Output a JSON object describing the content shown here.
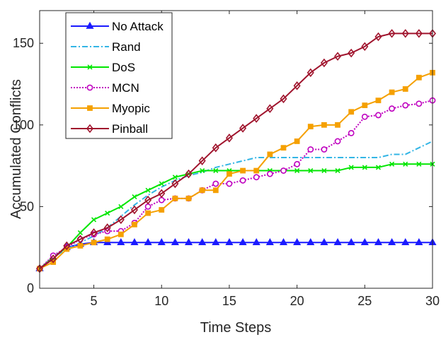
{
  "chart_data": {
    "type": "line",
    "title": "",
    "xlabel": "Time Steps",
    "ylabel": "Accumulated Conflicts",
    "xlim": [
      1,
      30
    ],
    "ylim": [
      0,
      170
    ],
    "xticks": [
      5,
      10,
      15,
      20,
      25,
      30
    ],
    "yticks": [
      0,
      50,
      100,
      150
    ],
    "grid": false,
    "legend_position": "top-left",
    "x": [
      1,
      2,
      3,
      4,
      5,
      6,
      7,
      8,
      9,
      10,
      11,
      12,
      13,
      14,
      15,
      16,
      17,
      18,
      19,
      20,
      21,
      22,
      23,
      24,
      25,
      26,
      27,
      28,
      29,
      30
    ],
    "series": [
      {
        "name": "No Attack",
        "color": "#1a1aff",
        "dash": "",
        "marker": "triangle",
        "values": [
          12,
          19,
          25,
          27,
          28,
          28,
          28,
          28,
          28,
          28,
          28,
          28,
          28,
          28,
          28,
          28,
          28,
          28,
          28,
          28,
          28,
          28,
          28,
          28,
          28,
          28,
          28,
          28,
          28,
          28
        ]
      },
      {
        "name": "Rand",
        "color": "#33b5e5",
        "dash": "8 3 2 3",
        "marker": "none",
        "values": [
          12,
          19,
          24,
          28,
          32,
          37,
          44,
          51,
          57,
          62,
          66,
          69,
          71,
          74,
          76,
          78,
          80,
          80,
          80,
          80,
          80,
          80,
          80,
          80,
          80,
          80,
          82,
          82,
          86,
          90
        ]
      },
      {
        "name": "DoS",
        "color": "#00e600",
        "dash": "",
        "marker": "x",
        "values": [
          12,
          19,
          25,
          34,
          42,
          46,
          50,
          56,
          60,
          64,
          68,
          70,
          72,
          72,
          72,
          72,
          72,
          72,
          72,
          72,
          72,
          72,
          72,
          74,
          74,
          74,
          76,
          76,
          76,
          76
        ]
      },
      {
        "name": "MCN",
        "color": "#bf00bf",
        "dash": "2 2",
        "marker": "circle",
        "values": [
          12,
          20,
          25,
          30,
          33,
          35,
          35,
          40,
          50,
          54,
          55,
          55,
          60,
          64,
          64,
          66,
          68,
          70,
          72,
          76,
          85,
          85,
          90,
          95,
          105,
          106,
          110,
          112,
          113,
          115
        ]
      },
      {
        "name": "Myopic",
        "color": "#f5a000",
        "dash": "",
        "marker": "square",
        "values": [
          12,
          16,
          24,
          26,
          28,
          30,
          33,
          39,
          46,
          48,
          55,
          55,
          60,
          60,
          70,
          72,
          72,
          82,
          86,
          90,
          99,
          100,
          100,
          108,
          112,
          115,
          120,
          122,
          129,
          132
        ]
      },
      {
        "name": "Pinball",
        "color": "#a0142d",
        "dash": "",
        "marker": "diamond",
        "values": [
          12,
          18,
          26,
          30,
          34,
          37,
          42,
          48,
          54,
          58,
          64,
          70,
          78,
          86,
          92,
          98,
          104,
          110,
          116,
          124,
          132,
          138,
          142,
          144,
          148,
          154,
          156,
          156,
          156,
          156
        ]
      }
    ]
  }
}
